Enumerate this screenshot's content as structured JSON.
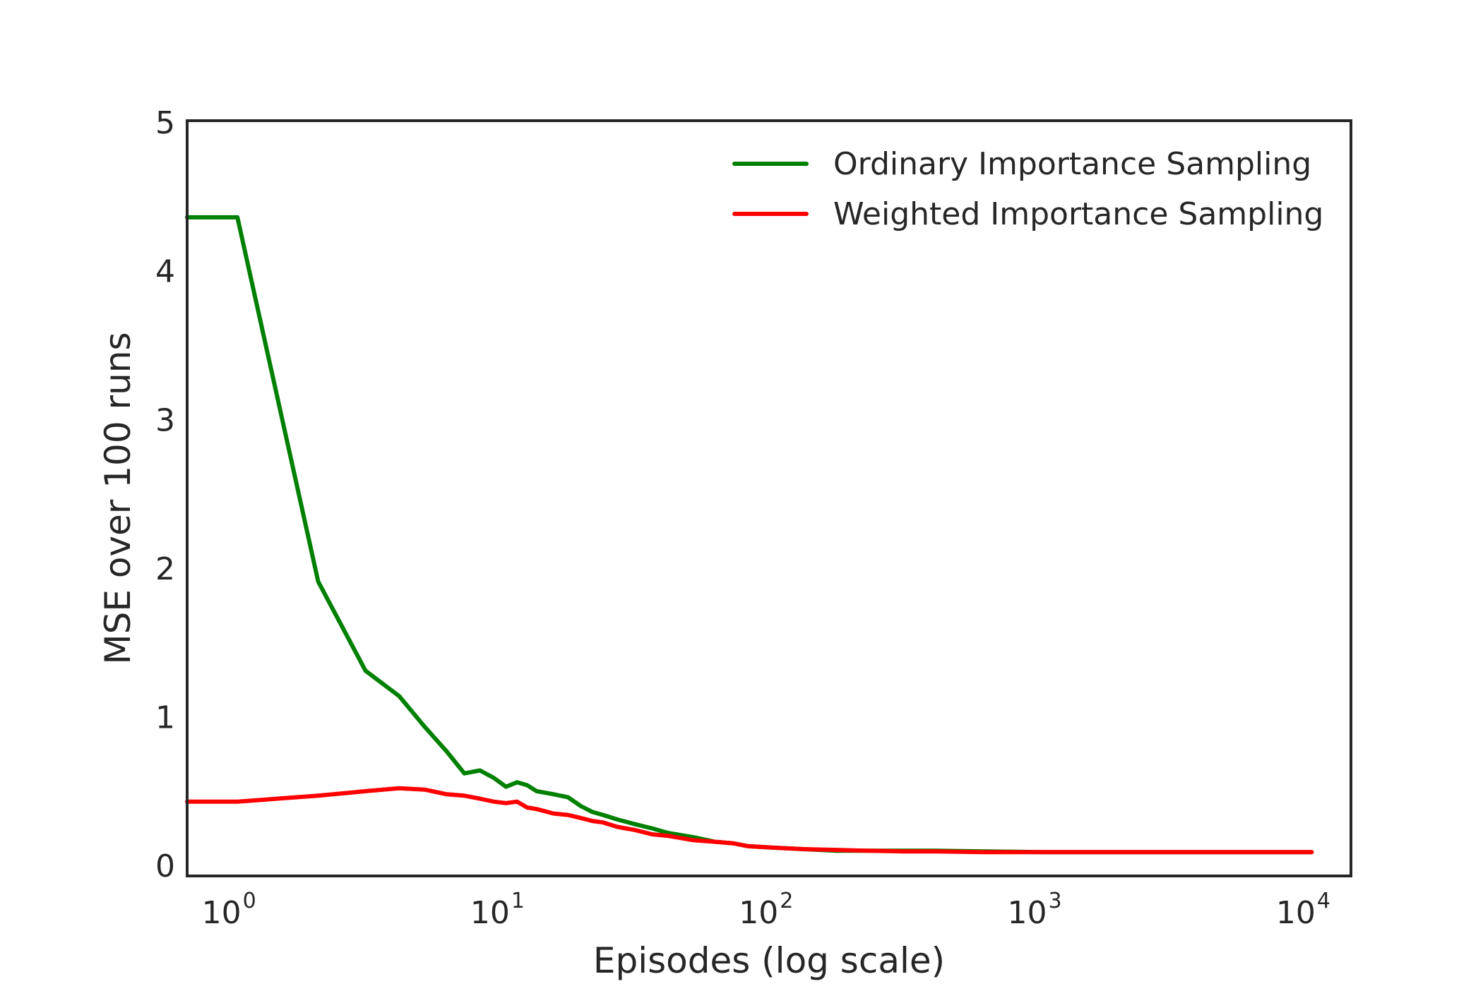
{
  "chart_data": {
    "type": "line",
    "title": "",
    "xlabel": "Episodes (log scale)",
    "ylabel": "MSE over 100 runs",
    "x_scale": "log",
    "xlim": [
      0.65,
      14000
    ],
    "ylim": [
      -0.08,
      5
    ],
    "x_ticks": [
      {
        "value": 1,
        "base": "10",
        "exp": "0"
      },
      {
        "value": 10,
        "base": "10",
        "exp": "1"
      },
      {
        "value": 100,
        "base": "10",
        "exp": "2"
      },
      {
        "value": 1000,
        "base": "10",
        "exp": "3"
      },
      {
        "value": 10000,
        "base": "10",
        "exp": "4"
      }
    ],
    "y_ticks": [
      {
        "value": 0,
        "label": "0"
      },
      {
        "value": 1,
        "label": "1"
      },
      {
        "value": 2,
        "label": "2"
      },
      {
        "value": 3,
        "label": "3"
      },
      {
        "value": 4,
        "label": "4"
      },
      {
        "value": 5,
        "label": "5"
      }
    ],
    "grid": false,
    "legend_position": "top-right",
    "series": [
      {
        "name": "Ordinary Importance Sampling",
        "color": "#008000",
        "x": [
          0.65,
          1,
          2,
          3,
          4,
          5,
          6,
          7,
          8,
          9,
          10,
          11,
          12,
          13,
          15,
          17,
          19,
          21,
          23,
          26,
          30,
          35,
          40,
          50,
          60,
          70,
          80,
          100,
          130,
          170,
          220,
          300,
          400,
          600,
          1000,
          2000,
          4000,
          10000
        ],
        "y": [
          4.35,
          4.35,
          1.9,
          1.3,
          1.13,
          0.92,
          0.76,
          0.61,
          0.63,
          0.58,
          0.52,
          0.55,
          0.53,
          0.49,
          0.47,
          0.45,
          0.39,
          0.35,
          0.33,
          0.3,
          0.27,
          0.24,
          0.21,
          0.18,
          0.15,
          0.14,
          0.12,
          0.11,
          0.1,
          0.09,
          0.09,
          0.09,
          0.09,
          0.085,
          0.08,
          0.08,
          0.08,
          0.08
        ]
      },
      {
        "name": "Weighted Importance Sampling",
        "color": "#ff0000",
        "x": [
          0.65,
          1,
          2,
          3,
          4,
          5,
          6,
          7,
          8,
          9,
          10,
          11,
          12,
          13,
          15,
          17,
          19,
          21,
          23,
          26,
          30,
          35,
          40,
          50,
          60,
          70,
          80,
          100,
          130,
          170,
          220,
          300,
          400,
          600,
          1000,
          2000,
          4000,
          10000
        ],
        "y": [
          0.42,
          0.42,
          0.46,
          0.49,
          0.51,
          0.5,
          0.47,
          0.46,
          0.44,
          0.42,
          0.41,
          0.42,
          0.38,
          0.37,
          0.34,
          0.33,
          0.31,
          0.29,
          0.28,
          0.25,
          0.23,
          0.2,
          0.19,
          0.16,
          0.15,
          0.14,
          0.12,
          0.11,
          0.1,
          0.095,
          0.09,
          0.085,
          0.085,
          0.08,
          0.08,
          0.08,
          0.08,
          0.08
        ]
      }
    ]
  }
}
